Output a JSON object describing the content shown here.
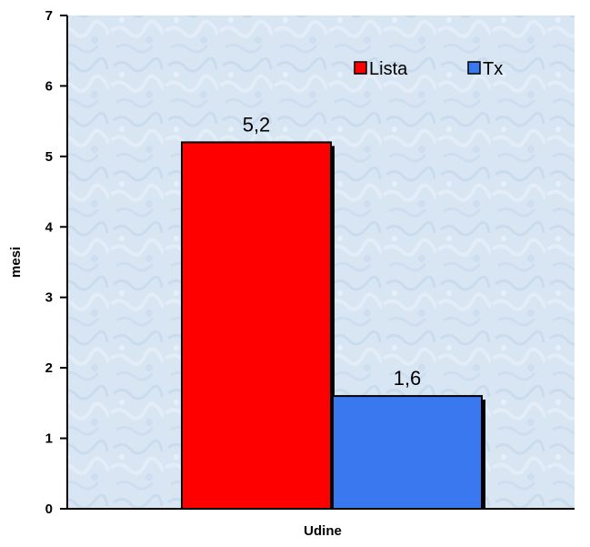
{
  "chart_data": {
    "type": "bar",
    "categories": [
      "Udine"
    ],
    "series": [
      {
        "name": "Lista",
        "values": [
          5.2
        ],
        "color": "#ff0000"
      },
      {
        "name": "Tx",
        "values": [
          1.6
        ],
        "color": "#3a78f0"
      }
    ],
    "data_labels": [
      "5,2",
      "1,6"
    ],
    "xlabel": "Udine",
    "ylabel": "mesi",
    "ylim": [
      0,
      7
    ],
    "yticks": [
      "0",
      "1",
      "2",
      "3",
      "4",
      "5",
      "6",
      "7"
    ],
    "grid": false,
    "legend": "top-right",
    "plot_background": "light blue textured"
  }
}
